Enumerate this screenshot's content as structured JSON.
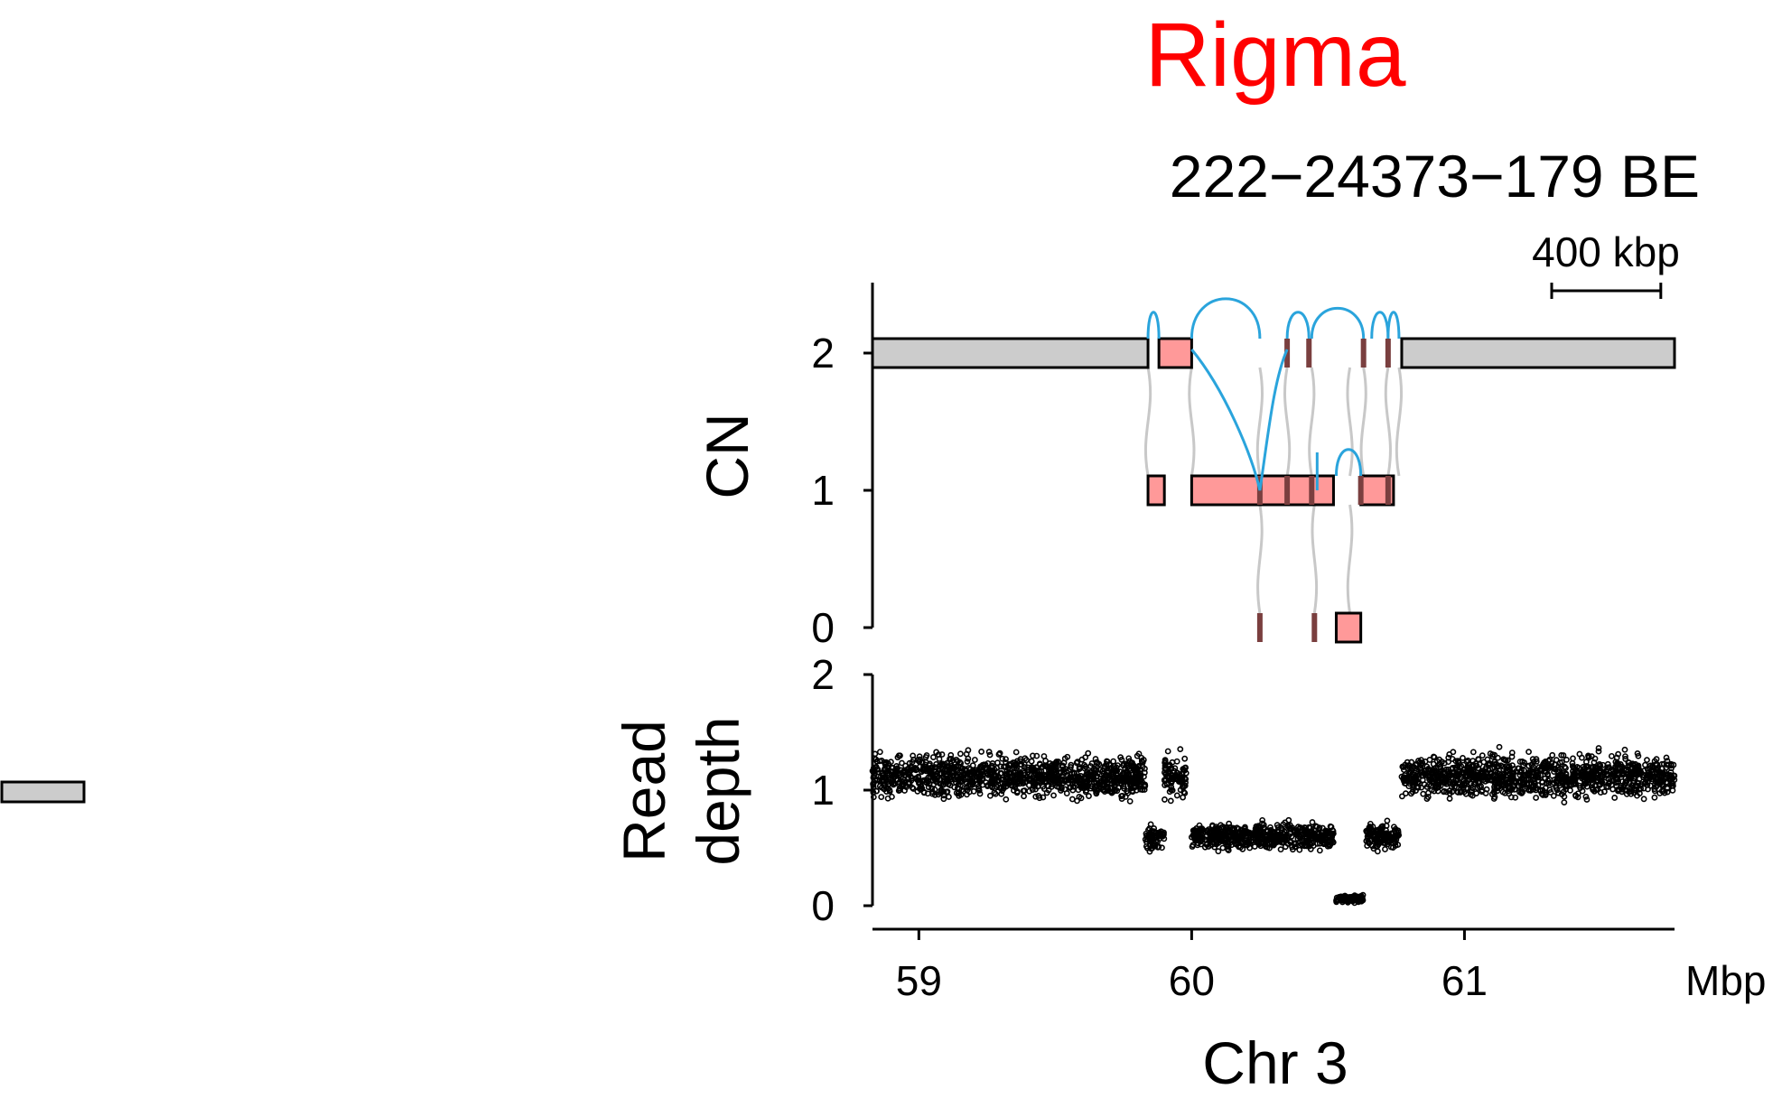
{
  "title": "Rigma",
  "title_color": "#ff0000",
  "subtitle": "222−24373−179 BE",
  "scale_bar_label": "400 kbp",
  "scale_bar_kbp": 400,
  "colors": {
    "segment_normal": "#cccccc",
    "segment_altered": "#ff9999",
    "breakpoint_mark": "#7a3f3f",
    "junction_arc": "#2aa4dc",
    "connector": "#c8c8c8",
    "points": "#000000"
  },
  "chart_data": [
    {
      "type": "cn-segments",
      "ylabel": "CN",
      "ylim": [
        0,
        2.5
      ],
      "yticks": [
        "0",
        "1",
        "2"
      ],
      "segments": [
        {
          "start": 58.83,
          "end": 59.84,
          "cn": 2,
          "state": "normal"
        },
        {
          "start": 59.88,
          "end": 60.0,
          "cn": 2,
          "state": "altered"
        },
        {
          "start": 59.84,
          "end": 59.9,
          "cn": 1,
          "state": "altered"
        },
        {
          "start": 60.0,
          "end": 60.52,
          "cn": 1,
          "state": "altered"
        },
        {
          "start": 60.62,
          "end": 60.74,
          "cn": 1,
          "state": "altered"
        },
        {
          "start": 60.53,
          "end": 60.62,
          "cn": 0,
          "state": "altered"
        },
        {
          "start": 60.77,
          "end": 61.77,
          "cn": 2,
          "state": "normal"
        }
      ],
      "breakpoints_cn2": [
        60.35,
        60.43,
        60.63,
        60.72
      ],
      "breakpoints_cn1": [
        60.25,
        60.35,
        60.44,
        60.62,
        60.72
      ],
      "breakpoints_cn0": [
        60.25,
        60.45
      ],
      "connectors": [
        59.84,
        60.0,
        60.25,
        60.35,
        60.44,
        60.58,
        60.63,
        60.72,
        60.76
      ],
      "junctions": [
        {
          "from": 59.84,
          "to": 59.88,
          "level": 2
        },
        {
          "from": 60.0,
          "to": 60.25,
          "level": 2
        },
        {
          "from": 60.35,
          "to": 60.43,
          "level": 2
        },
        {
          "from": 60.44,
          "to": 60.63,
          "level": 2
        },
        {
          "from": 60.66,
          "to": 60.72,
          "level": 2
        },
        {
          "from": 60.72,
          "to": 60.76,
          "level": 2
        },
        {
          "from": 60.53,
          "to": 60.62,
          "level": 1
        }
      ]
    },
    {
      "type": "scatter",
      "ylabel_lines": [
        "Read",
        "depth"
      ],
      "ylim": [
        0,
        2
      ],
      "yticks": [
        "0",
        "1",
        "2"
      ],
      "regions": [
        {
          "start": 58.83,
          "end": 59.83,
          "mean": 1.12,
          "sd": 0.12
        },
        {
          "start": 59.83,
          "end": 59.9,
          "mean": 0.58,
          "sd": 0.06
        },
        {
          "start": 59.9,
          "end": 59.98,
          "mean": 1.12,
          "sd": 0.12
        },
        {
          "start": 60.0,
          "end": 60.52,
          "mean": 0.6,
          "sd": 0.07
        },
        {
          "start": 60.53,
          "end": 60.63,
          "mean": 0.06,
          "sd": 0.02
        },
        {
          "start": 60.64,
          "end": 60.76,
          "mean": 0.6,
          "sd": 0.07
        },
        {
          "start": 60.77,
          "end": 61.77,
          "mean": 1.12,
          "sd": 0.12
        }
      ]
    }
  ],
  "x_axis": {
    "label": "Chr 3",
    "unit_label": "Mbp",
    "xlim": [
      58.83,
      61.77
    ],
    "ticks": [
      {
        "value": 59,
        "label": "59"
      },
      {
        "value": 60,
        "label": "60"
      },
      {
        "value": 61,
        "label": "61"
      }
    ]
  }
}
